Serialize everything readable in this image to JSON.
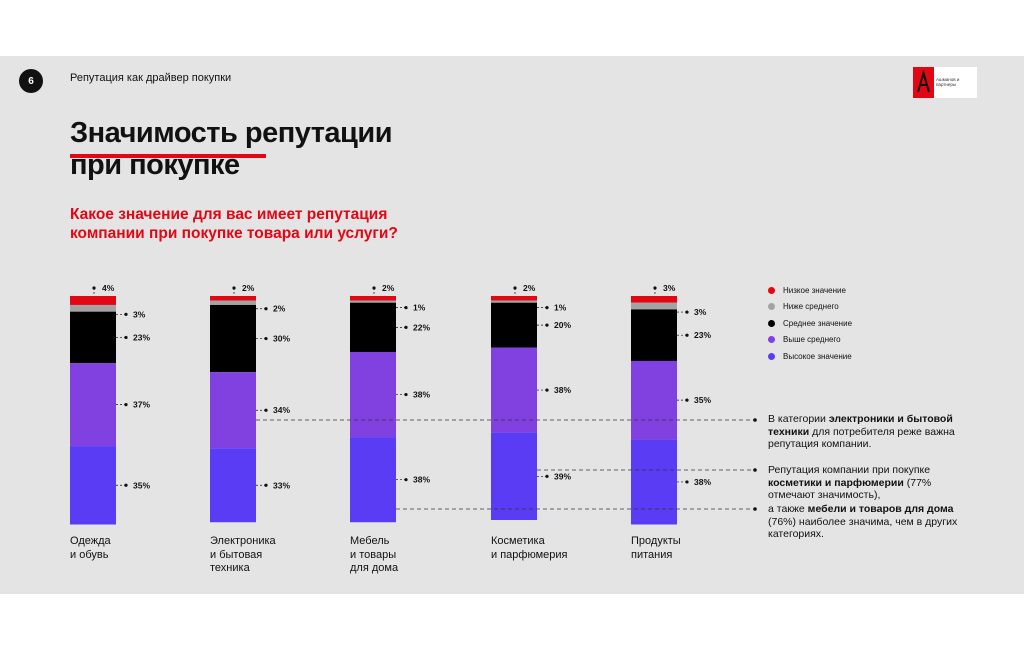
{
  "header": {
    "page_number": "6",
    "section": "Репутация как драйвер покупки",
    "logo_text": "Ашманов и партнеры"
  },
  "title": {
    "line1": "Значимость репутации",
    "line2": "при покупке"
  },
  "question": "Какое значение для вас имеет репутация компании при покупке товара или услуги?",
  "colors": {
    "low": "#e30613",
    "below_avg": "#a3a3a3",
    "avg": "#000000",
    "above_avg": "#8140e0",
    "high": "#5a3cf5",
    "accent": "#e30613",
    "background": "#e4e4e4"
  },
  "chart_data": {
    "type": "bar",
    "stacked": true,
    "categories": [
      "Одежда и обувь",
      "Электроника и бытовая техника",
      "Мебель и товары для дома",
      "Косметика и парфюмерия",
      "Продукты питания"
    ],
    "category_lines": [
      [
        "Одежда",
        "и обувь"
      ],
      [
        "Электроника",
        "и бытовая",
        "техника"
      ],
      [
        "Мебель",
        "и товары",
        "для дома"
      ],
      [
        "Косметика",
        "и парфюмерия"
      ],
      [
        "Продукты",
        "питания"
      ]
    ],
    "series": [
      {
        "name": "Низкое значение",
        "key": "low",
        "values": [
          4,
          2,
          2,
          2,
          3
        ],
        "labels": [
          "4%",
          "2%",
          "2%",
          "2%",
          "3%"
        ]
      },
      {
        "name": "Ниже среднего",
        "key": "below_avg",
        "values": [
          3,
          2,
          1,
          1,
          3
        ],
        "labels": [
          "3%",
          "2%",
          "1%",
          "1%",
          "3%"
        ]
      },
      {
        "name": "Среднее значение",
        "key": "avg",
        "values": [
          23,
          30,
          22,
          20,
          23
        ],
        "labels": [
          "23%",
          "30%",
          "22%",
          "20%",
          "23%"
        ]
      },
      {
        "name": "Выше среднего",
        "key": "above_avg",
        "values": [
          37,
          34,
          38,
          38,
          35
        ],
        "labels": [
          "37%",
          "34%",
          "38%",
          "38%",
          "35%"
        ]
      },
      {
        "name": "Высокое значение",
        "key": "high",
        "values": [
          35,
          33,
          38,
          39,
          38
        ],
        "labels": [
          "35%",
          "33%",
          "38%",
          "39%",
          "38%"
        ]
      }
    ],
    "unit": "%"
  },
  "notes": [
    {
      "parts": [
        {
          "text": "В категории ",
          "bold": false
        },
        {
          "text": "электроники и бытовой техники",
          "bold": true
        },
        {
          "text": " для потребителя реже важна репутация компании.",
          "bold": false
        }
      ]
    },
    {
      "parts": [
        {
          "text": "Репутация компании при покупке ",
          "bold": false
        },
        {
          "text": "косметики и парфюмерии",
          "bold": true
        },
        {
          "text": " (77% отмечают значимость),",
          "bold": false
        }
      ]
    },
    {
      "parts": [
        {
          "text": "а также ",
          "bold": false
        },
        {
          "text": "мебели и товаров для дома",
          "bold": true
        },
        {
          "text": " (76%) наиболее значима, чем в других категориях.",
          "bold": false
        }
      ]
    }
  ]
}
